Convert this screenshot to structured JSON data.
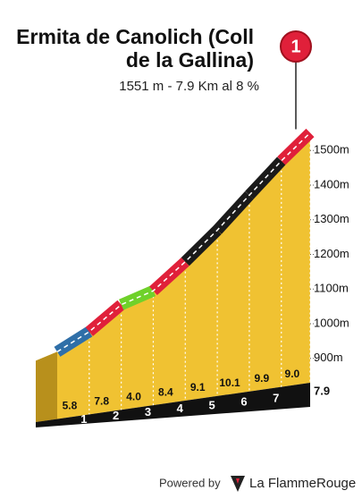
{
  "chart_data": {
    "type": "profile",
    "title": "Ermita de Canolich (Coll de la Gallina)",
    "subtitle": "1551 m - 7.9 Km al 8 %",
    "marker": "1",
    "x": [
      0,
      1,
      2,
      3,
      4,
      5,
      6,
      7,
      7.9
    ],
    "elevation": [
      919,
      977,
      1055,
      1095,
      1179,
      1270,
      1371,
      1470,
      1551
    ],
    "gradients": [
      5.8,
      7.8,
      4.0,
      8.4,
      9.1,
      10.1,
      9.9,
      9.0
    ],
    "gradient_labels": [
      "5.8",
      "7.8",
      "4.0",
      "8.4",
      "9.1",
      "10.1",
      "9.9",
      "9.0"
    ],
    "segment_colors": [
      "#2f6fa8",
      "#e0203a",
      "#6fd12a",
      "#e0203a",
      "#1a1a1a",
      "#1a1a1a",
      "#1a1a1a",
      "#e0203a"
    ],
    "xlim": [
      0,
      7.9
    ],
    "xticks": [
      1,
      2,
      3,
      4,
      5,
      6,
      7,
      7.9
    ],
    "ylim": [
      760,
      1560
    ],
    "yticks": [
      {
        "value": 900,
        "label": "900m"
      },
      {
        "value": 1000,
        "label": "1000m"
      },
      {
        "value": 1100,
        "label": "1100m"
      },
      {
        "value": 1200,
        "label": "1200m"
      },
      {
        "value": 1300,
        "label": "1300m"
      },
      {
        "value": 1400,
        "label": "1400m"
      },
      {
        "value": 1500,
        "label": "1500m"
      }
    ],
    "fill_color": "#f0c232",
    "footer": {
      "powered_by": "Powered by",
      "brand": "La FlammeRouge"
    }
  }
}
